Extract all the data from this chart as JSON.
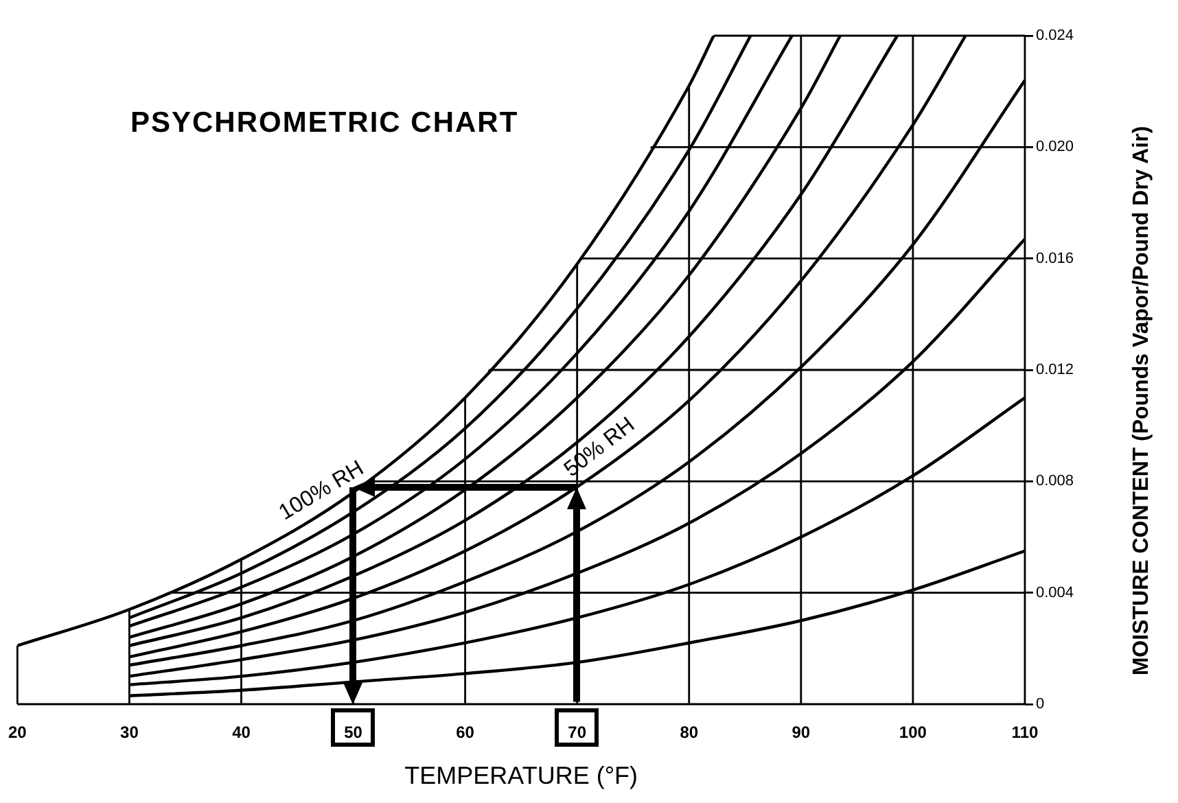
{
  "chart_data": {
    "type": "line",
    "title": "PSYCHROMETRIC CHART",
    "xlabel": "TEMPERATURE (°F)",
    "ylabel": "MOISTURE CONTENT (Pounds Vapor/Pound Dry Air)",
    "xlim": [
      20,
      110
    ],
    "xticks": [
      20,
      30,
      40,
      50,
      60,
      70,
      80,
      90,
      100,
      110
    ],
    "ylim": [
      0,
      0.024
    ],
    "yticks": [
      0,
      0.004,
      0.008,
      0.012,
      0.016,
      {
        "value": 0.02,
        "label": "0.020"
      },
      0.024
    ],
    "grid": true,
    "legend": false,
    "marker": "none",
    "annotations": [
      {
        "text": "100% RH",
        "x": 48,
        "y": 0.0071
      },
      {
        "text": "50% RH",
        "x": 73,
        "y": 0.0087
      }
    ],
    "series": [
      {
        "color": "#000000",
        "x": [
          20,
          30,
          40,
          50,
          60,
          70,
          80,
          82.2
        ],
        "values": [
          0.0021,
          0.0034,
          0.0052,
          0.0076,
          0.011,
          0.0158,
          0.0222,
          0.024
        ]
      },
      {
        "color": "#000000",
        "x": [
          30,
          40,
          50,
          60,
          70,
          80,
          85.5
        ],
        "values": [
          0.0031,
          0.0047,
          0.0069,
          0.0099,
          0.0142,
          0.0199,
          0.024
        ]
      },
      {
        "color": "#000000",
        "x": [
          30,
          40,
          50,
          60,
          70,
          80,
          89.2
        ],
        "values": [
          0.0028,
          0.0042,
          0.0061,
          0.0088,
          0.0126,
          0.0177,
          0.024
        ]
      },
      {
        "color": "#000000",
        "x": [
          30,
          40,
          50,
          60,
          70,
          80,
          90,
          93.5
        ],
        "values": [
          0.0024,
          0.0036,
          0.0053,
          0.0077,
          0.011,
          0.0154,
          0.0214,
          0.024
        ]
      },
      {
        "color": "#000000",
        "x": [
          30,
          40,
          50,
          60,
          70,
          80,
          90,
          98.6
        ],
        "values": [
          0.0021,
          0.0031,
          0.0046,
          0.0066,
          0.0094,
          0.0132,
          0.0183,
          0.024
        ]
      },
      {
        "color": "#000000",
        "x": [
          30,
          40,
          50,
          60,
          70,
          80,
          90,
          100,
          104.7
        ],
        "values": [
          0.0017,
          0.0026,
          0.0038,
          0.0055,
          0.0078,
          0.0109,
          0.0152,
          0.0208,
          0.024
        ]
      },
      {
        "color": "#000000",
        "x": [
          30,
          40,
          50,
          60,
          70,
          80,
          90,
          100,
          110
        ],
        "values": [
          0.0014,
          0.0021,
          0.003,
          0.0044,
          0.0062,
          0.0087,
          0.0121,
          0.0165,
          0.0224
        ]
      },
      {
        "color": "#000000",
        "x": [
          30,
          40,
          50,
          60,
          70,
          80,
          90,
          100,
          110
        ],
        "values": [
          0.001,
          0.0016,
          0.0023,
          0.0033,
          0.0047,
          0.0065,
          0.009,
          0.0123,
          0.0167
        ]
      },
      {
        "color": "#000000",
        "x": [
          30,
          40,
          50,
          60,
          70,
          80,
          90,
          100,
          110
        ],
        "values": [
          0.0007,
          0.001,
          0.0015,
          0.0022,
          0.0031,
          0.0043,
          0.006,
          0.0082,
          0.011
        ]
      },
      {
        "color": "#000000",
        "x": [
          30,
          40,
          50,
          60,
          70,
          80,
          90,
          100,
          110
        ],
        "values": [
          0.0003,
          0.0005,
          0.0008,
          0.0011,
          0.0015,
          0.0022,
          0.003,
          0.0041,
          0.0055
        ]
      }
    ]
  }
}
